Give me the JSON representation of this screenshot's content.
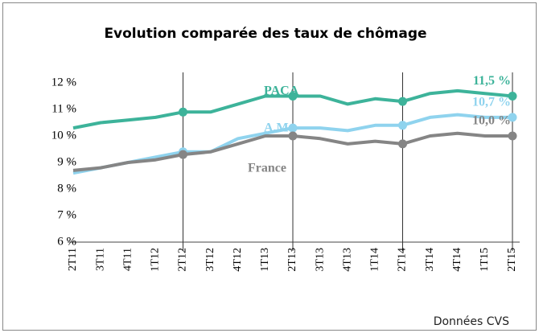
{
  "chart_data": {
    "type": "line",
    "title": "Evolution comparée des taux de chômage",
    "note": "Données CVS",
    "categories": [
      "2T11",
      "3T11",
      "4T11",
      "1T12",
      "2T12",
      "3T12",
      "4T12",
      "1T13",
      "2T13",
      "3T13",
      "4T13",
      "1T14",
      "2T14",
      "3T14",
      "4T14",
      "1T15",
      "2T15"
    ],
    "series": [
      {
        "name": "PACA",
        "color": "#3db39a",
        "values": [
          10.3,
          10.5,
          10.6,
          10.7,
          10.9,
          10.9,
          11.2,
          11.5,
          11.5,
          11.5,
          11.2,
          11.4,
          11.3,
          11.6,
          11.7,
          11.6,
          11.5
        ],
        "value_labels": [
          null,
          null,
          null,
          null,
          null,
          null,
          null,
          null,
          null,
          null,
          null,
          null,
          null,
          null,
          null,
          null,
          "11,5 %"
        ]
      },
      {
        "name": "A.M.",
        "color": "#8fd3ee",
        "values": [
          8.6,
          8.8,
          9.0,
          9.2,
          9.4,
          9.4,
          9.9,
          10.1,
          10.3,
          10.3,
          10.2,
          10.4,
          10.4,
          10.7,
          10.8,
          10.7,
          10.7
        ],
        "value_labels": [
          null,
          null,
          null,
          null,
          null,
          null,
          null,
          null,
          null,
          null,
          null,
          null,
          null,
          null,
          null,
          null,
          "10,7 %"
        ]
      },
      {
        "name": "France",
        "color": "#858585",
        "values": [
          8.7,
          8.8,
          9.0,
          9.1,
          9.3,
          9.4,
          9.7,
          10.0,
          10.0,
          9.9,
          9.7,
          9.8,
          9.7,
          10.0,
          10.1,
          10.0,
          10.0
        ],
        "value_labels": [
          null,
          null,
          null,
          null,
          null,
          null,
          null,
          null,
          null,
          null,
          null,
          null,
          null,
          null,
          null,
          null,
          "10,0 %"
        ]
      }
    ],
    "ylim": [
      6,
      12
    ],
    "yticks": [
      {
        "value": 6,
        "label": "6 %"
      },
      {
        "value": 7,
        "label": "7 %"
      },
      {
        "value": 8,
        "label": "8 %"
      },
      {
        "value": 9,
        "label": "9 %"
      },
      {
        "value": 10,
        "label": "10 %"
      },
      {
        "value": 11,
        "label": "11 %"
      },
      {
        "value": 12,
        "label": "12 %"
      }
    ],
    "grid": false
  }
}
